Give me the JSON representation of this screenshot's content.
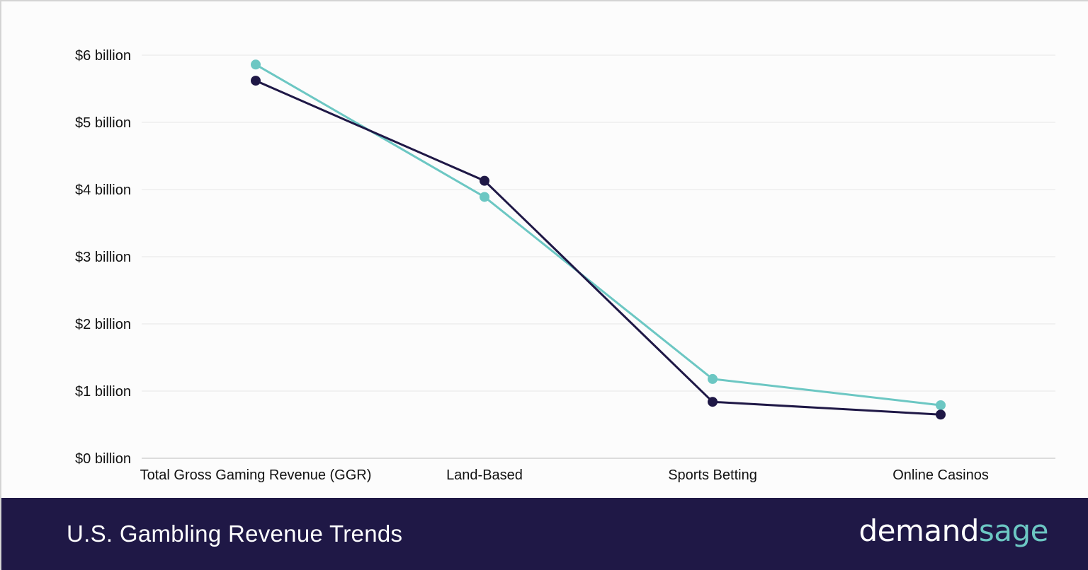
{
  "footer": {
    "title": "U.S. Gambling Revenue Trends",
    "brand_part1": "demand",
    "brand_part2": "sage"
  },
  "colors": {
    "background": "#fcfcfc",
    "footer_bg": "#1f1846",
    "series_dark": "#1f1846",
    "series_teal": "#6cc7c3",
    "grid": "#e6e6e6"
  },
  "chart_data": {
    "type": "line",
    "categories": [
      "Total Gross Gaming Revenue (GGR)",
      "Land-Based",
      "Sports Betting",
      "Online Casinos"
    ],
    "series": [
      {
        "color": "#6cc7c3",
        "values": [
          5.86,
          3.89,
          1.18,
          0.79
        ]
      },
      {
        "color": "#1f1846",
        "values": [
          5.62,
          4.13,
          0.84,
          0.65
        ]
      }
    ],
    "yticks": [
      {
        "value": 0,
        "label": "$0 billion"
      },
      {
        "value": 1,
        "label": "$1 billion"
      },
      {
        "value": 2,
        "label": "$2 billion"
      },
      {
        "value": 3,
        "label": "$3 billion"
      },
      {
        "value": 4,
        "label": "$4 billion"
      },
      {
        "value": 5,
        "label": "$5 billion"
      },
      {
        "value": 6,
        "label": "$6 billion"
      }
    ],
    "ylim": [
      0,
      6
    ],
    "grid": true,
    "legend": "none"
  }
}
